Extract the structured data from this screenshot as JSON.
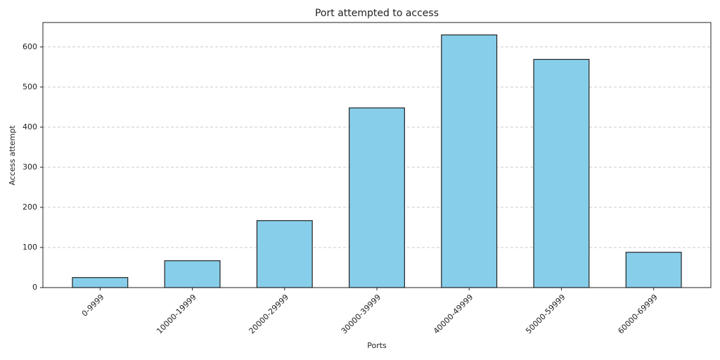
{
  "chart_data": {
    "type": "bar",
    "title": "Port attempted to access",
    "x_label": "Ports",
    "y_label": "Access attempt",
    "categories": [
      "0-9999",
      "10000-19999",
      "20000-29999",
      "30000-39999",
      "40000-49999",
      "50000-59999",
      "60000-69999"
    ],
    "values": [
      25,
      67,
      167,
      448,
      630,
      569,
      88
    ],
    "color": "#87ceeb",
    "edge_color": "#222222",
    "ylim": [
      0,
      661
    ],
    "yticks": [
      0,
      100,
      200,
      300,
      400,
      500,
      600
    ],
    "grid": true
  }
}
